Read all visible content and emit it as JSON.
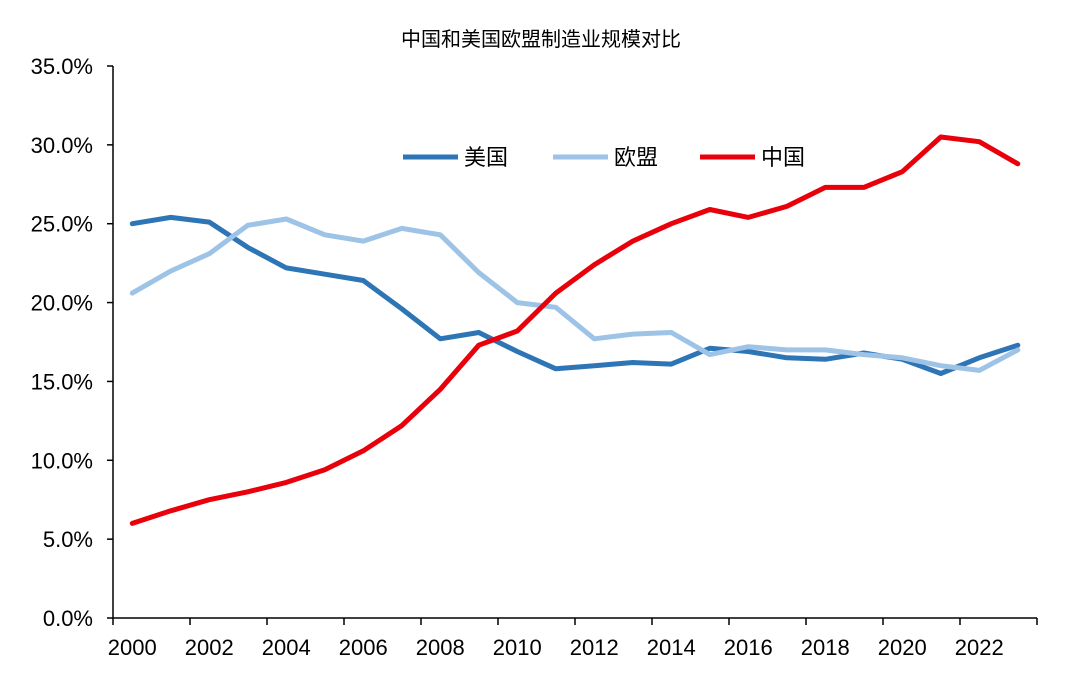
{
  "chart_data": {
    "type": "line",
    "title": "中国和美国欧盟制造业规模对比",
    "xlabel": "",
    "ylabel": "",
    "x": [
      2000,
      2001,
      2002,
      2003,
      2004,
      2005,
      2006,
      2007,
      2008,
      2009,
      2010,
      2011,
      2012,
      2013,
      2014,
      2015,
      2016,
      2017,
      2018,
      2019,
      2020,
      2021,
      2022,
      2023
    ],
    "x_tick_labels": [
      "2000",
      "2002",
      "2004",
      "2006",
      "2008",
      "2010",
      "2012",
      "2014",
      "2016",
      "2018",
      "2020",
      "2022"
    ],
    "y_tick_labels": [
      "0.0%",
      "5.0%",
      "10.0%",
      "15.0%",
      "20.0%",
      "25.0%",
      "30.0%",
      "35.0%"
    ],
    "ylim": [
      0,
      35
    ],
    "y_unit": "%",
    "grid": false,
    "legend_position": "top",
    "series": [
      {
        "name": "美国",
        "color": "#2e75b6",
        "values": [
          25.0,
          25.4,
          25.1,
          23.5,
          22.2,
          21.8,
          21.4,
          19.6,
          17.7,
          18.1,
          16.9,
          15.8,
          16.0,
          16.2,
          16.1,
          17.1,
          16.9,
          16.5,
          16.4,
          16.8,
          16.4,
          15.5,
          16.5,
          17.3
        ]
      },
      {
        "name": "欧盟",
        "color": "#9dc3e6",
        "values": [
          20.6,
          22.0,
          23.1,
          24.9,
          25.3,
          24.3,
          23.9,
          24.7,
          24.3,
          21.9,
          20.0,
          19.7,
          17.7,
          18.0,
          18.1,
          16.7,
          17.2,
          17.0,
          17.0,
          16.7,
          16.5,
          16.0,
          15.7,
          17.0
        ]
      },
      {
        "name": "中国",
        "color": "#e8000b",
        "values": [
          6.0,
          6.8,
          7.5,
          8.0,
          8.6,
          9.4,
          10.6,
          12.2,
          14.5,
          17.3,
          18.2,
          20.6,
          22.4,
          23.9,
          25.0,
          25.9,
          25.4,
          26.1,
          27.3,
          27.3,
          28.3,
          30.5,
          30.2,
          28.8
        ]
      }
    ]
  }
}
